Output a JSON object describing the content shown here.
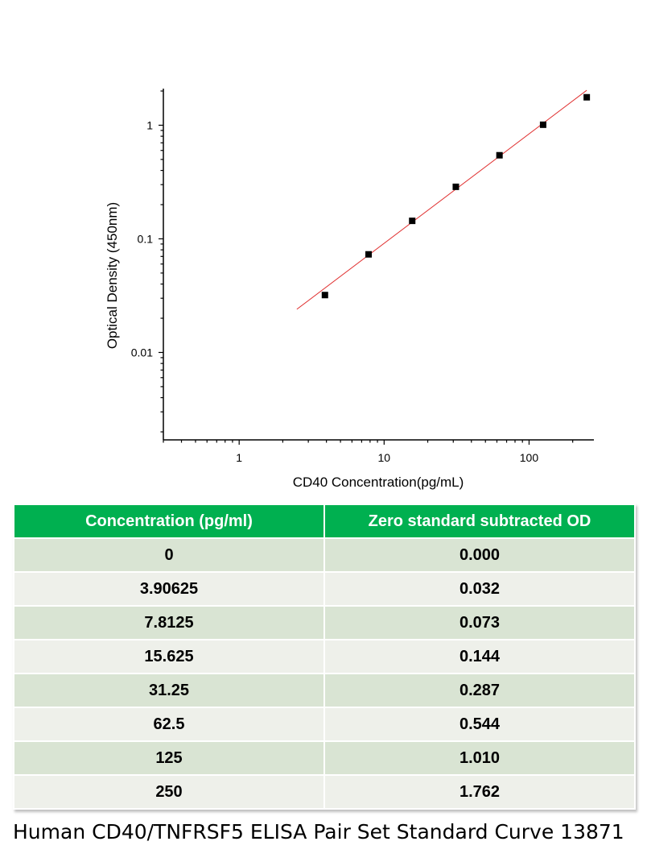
{
  "chart_data": {
    "type": "scatter",
    "xlabel": "CD40 Concentration(pg/mL)",
    "ylabel": "Optical Density (450nm)",
    "x_scale": "log",
    "y_scale": "log",
    "xlim": [
      0.3,
      280
    ],
    "ylim": [
      0.0017,
      2.1
    ],
    "x_ticks": [
      1,
      10,
      100
    ],
    "x_tick_labels": [
      "1",
      "10",
      "100"
    ],
    "y_ticks": [
      0.01,
      0.1,
      1
    ],
    "y_tick_labels": [
      "0.01",
      "0.1",
      "1"
    ],
    "grid": false,
    "points": {
      "x": [
        3.90625,
        7.8125,
        15.625,
        31.25,
        62.5,
        125,
        250
      ],
      "y": [
        0.032,
        0.073,
        0.144,
        0.287,
        0.544,
        1.01,
        1.762
      ]
    },
    "fit_line": {
      "x": [
        2.5,
        250
      ],
      "y": [
        0.024,
        2.03
      ]
    },
    "colors": {
      "points": "#000000",
      "fit_line": "#e03030"
    }
  },
  "table": {
    "headers": [
      "Concentration (pg/ml)",
      "Zero standard subtracted OD"
    ],
    "rows": [
      [
        "0",
        "0.000"
      ],
      [
        "3.90625",
        "0.032"
      ],
      [
        "7.8125",
        "0.073"
      ],
      [
        "15.625",
        "0.144"
      ],
      [
        "31.25",
        "0.287"
      ],
      [
        "62.5",
        "0.544"
      ],
      [
        "125",
        "1.010"
      ],
      [
        "250",
        "1.762"
      ]
    ],
    "colors": {
      "header_bg": "#00b050",
      "row_odd": "#d9e4d3",
      "row_even": "#eef0ea"
    }
  },
  "caption": "Human CD40/TNFRSF5 ELISA Pair Set Standard Curve 13871"
}
